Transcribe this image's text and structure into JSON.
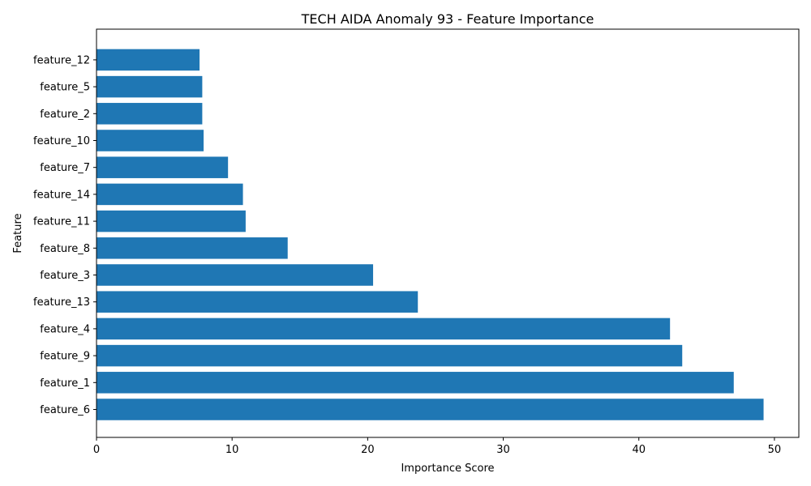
{
  "chart_data": {
    "type": "bar",
    "orientation": "horizontal",
    "title": "TECH AIDA Anomaly 93 - Feature Importance",
    "xlabel": "Importance Score",
    "ylabel": "Feature",
    "xlim": [
      0,
      51.8
    ],
    "xticks": [
      0,
      10,
      20,
      30,
      40,
      50
    ],
    "grid": false,
    "bar_color": "#1f77b4",
    "categories": [
      "feature_6",
      "feature_1",
      "feature_9",
      "feature_4",
      "feature_13",
      "feature_3",
      "feature_8",
      "feature_11",
      "feature_14",
      "feature_7",
      "feature_10",
      "feature_2",
      "feature_5",
      "feature_12"
    ],
    "values": [
      49.2,
      47.0,
      43.2,
      42.3,
      23.7,
      20.4,
      14.1,
      11.0,
      10.8,
      9.7,
      7.9,
      7.8,
      7.8,
      7.6
    ]
  }
}
